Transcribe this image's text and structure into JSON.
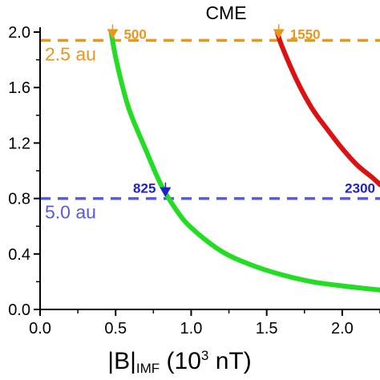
{
  "chart_data": {
    "type": "line",
    "title": "CME",
    "xlabel": {
      "prefix": "|B|",
      "subscript": "IMF",
      "mid": " (10",
      "superscript": "3",
      "suffix": " nT)"
    },
    "ylabel": "",
    "xlim": [
      0.0,
      2.25
    ],
    "ylim": [
      0.0,
      2.0
    ],
    "x_ticks": [
      "0.0",
      "0.5",
      "1.0",
      "1.5",
      "2.0"
    ],
    "x_tick_values": [
      0.0,
      0.5,
      1.0,
      1.5,
      2.0
    ],
    "y_ticks": [
      "0.0",
      "0.4",
      "0.8",
      "1.2",
      "1.6",
      "2.0"
    ],
    "y_tick_values": [
      0.0,
      0.4,
      0.8,
      1.2,
      1.6,
      2.0
    ],
    "grid": false,
    "series": [
      {
        "color": "#22dd22",
        "x": [
          0.47,
          0.5,
          0.55,
          0.6,
          0.7,
          0.8,
          0.9,
          1.0,
          1.2,
          1.4,
          1.6,
          1.8,
          2.0,
          2.25
        ],
        "y": [
          2.0,
          1.82,
          1.59,
          1.41,
          1.15,
          0.9,
          0.72,
          0.59,
          0.42,
          0.32,
          0.25,
          0.2,
          0.17,
          0.14
        ]
      },
      {
        "color": "#dd1111",
        "x": [
          1.57,
          1.6,
          1.7,
          1.8,
          1.9,
          2.0,
          2.1,
          2.2,
          2.25
        ],
        "y": [
          2.0,
          1.9,
          1.65,
          1.45,
          1.3,
          1.16,
          1.04,
          0.95,
          0.9
        ]
      }
    ],
    "reference_lines": [
      {
        "y": 1.94,
        "label": "2.5 au",
        "color": "#e8961e"
      },
      {
        "y": 0.8,
        "label": "5.0 au",
        "color": "#5a5adc"
      }
    ],
    "annotations": [
      {
        "text": "500",
        "x": 0.48,
        "y": 1.94,
        "color": "#e8961e"
      },
      {
        "text": "1550",
        "x": 1.58,
        "y": 1.94,
        "color": "#e8961e"
      },
      {
        "text": "825",
        "x": 0.83,
        "y": 0.8,
        "color": "#2020cc"
      },
      {
        "text": "2300",
        "x": 2.25,
        "y": 0.8,
        "color": "#2020cc"
      }
    ]
  }
}
